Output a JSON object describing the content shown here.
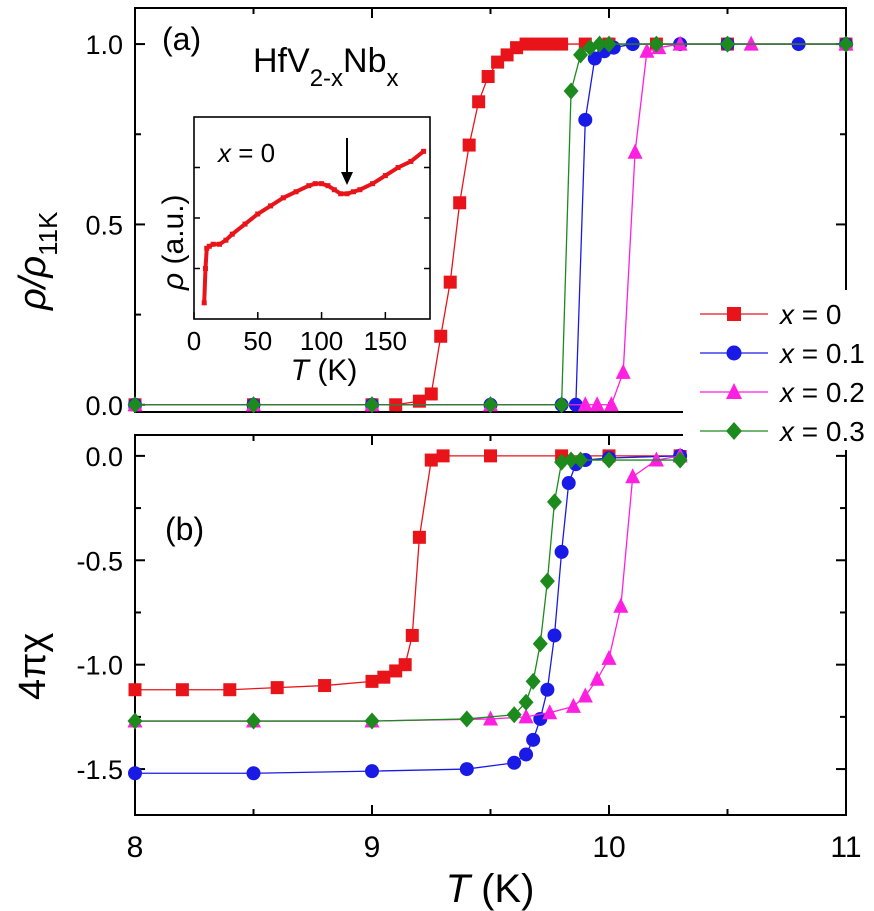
{
  "chart_data": [
    {
      "panel": "a",
      "type": "line",
      "panel_label": "(a)",
      "title_text": {
        "main": "HfV",
        "sub1": "2-x",
        "mid": "Nb",
        "sub2": "x"
      },
      "ylabel": {
        "main": "ρ/ρ",
        "sub": "11K"
      },
      "xlim": [
        8,
        11
      ],
      "ylim": [
        -0.02,
        1.1
      ],
      "yticks": [
        0.0,
        0.5,
        1.0
      ],
      "ytick_labels": [
        "0.0",
        "0.5",
        "1.0"
      ],
      "series": [
        {
          "name": "x = 0",
          "color": "#e8141a",
          "marker": "square",
          "x": [
            8.0,
            8.5,
            9.0,
            9.1,
            9.2,
            9.25,
            9.29,
            9.33,
            9.37,
            9.41,
            9.45,
            9.49,
            9.53,
            9.57,
            9.61,
            9.65,
            9.7,
            9.75,
            9.8,
            9.9,
            10.0,
            10.2,
            10.5,
            11.0
          ],
          "y": [
            0.0,
            0.0,
            0.0,
            0.0,
            0.01,
            0.03,
            0.19,
            0.34,
            0.56,
            0.72,
            0.84,
            0.91,
            0.95,
            0.97,
            0.99,
            1.0,
            1.0,
            1.0,
            1.0,
            1.0,
            1.0,
            1.0,
            1.0,
            1.0
          ]
        },
        {
          "name": "x = 0.1",
          "color": "#1a1ae6",
          "marker": "circle",
          "x": [
            8.0,
            8.5,
            9.0,
            9.5,
            9.8,
            9.86,
            9.9,
            9.94,
            9.98,
            10.02,
            10.1,
            10.3,
            10.5,
            10.8,
            11.0
          ],
          "y": [
            0.0,
            0.0,
            0.0,
            0.0,
            0.0,
            0.0,
            0.79,
            0.96,
            0.98,
            0.99,
            1.0,
            1.0,
            1.0,
            1.0,
            1.0
          ]
        },
        {
          "name": "x = 0.2",
          "color": "#ff1fe0",
          "marker": "triangle",
          "x": [
            8.0,
            8.5,
            9.0,
            9.5,
            9.9,
            9.95,
            10.01,
            10.06,
            10.11,
            10.16,
            10.21,
            10.3,
            10.6,
            11.0
          ],
          "y": [
            0.0,
            0.0,
            0.0,
            0.0,
            0.0,
            0.0,
            0.0,
            0.09,
            0.7,
            0.98,
            0.99,
            1.0,
            1.0,
            1.0
          ]
        },
        {
          "name": "x = 0.3",
          "color": "#1c8a1c",
          "marker": "diamond",
          "x": [
            8.0,
            8.5,
            9.0,
            9.5,
            9.8,
            9.84,
            9.88,
            9.92,
            9.96,
            10.0,
            10.2,
            10.5,
            11.0
          ],
          "y": [
            0.0,
            0.0,
            0.0,
            0.0,
            0.0,
            0.87,
            0.97,
            0.99,
            1.0,
            1.0,
            1.0,
            1.0,
            1.0
          ]
        }
      ]
    },
    {
      "panel": "a-inset",
      "type": "line",
      "label_text": "x = 0",
      "xlabel": {
        "var": "T",
        "unit": " (K)"
      },
      "ylabel": {
        "var": "ρ",
        "unit": " (a.u.)"
      },
      "xlim": [
        0,
        185
      ],
      "ylim": [
        0,
        1
      ],
      "xticks": [
        0,
        50,
        100,
        150
      ],
      "xtick_labels": [
        "0",
        "50",
        "100",
        "150"
      ],
      "arrow_at_x": 118,
      "color": "#e8141a",
      "x": [
        8,
        9,
        10,
        12,
        15,
        20,
        25,
        30,
        40,
        50,
        60,
        70,
        80,
        90,
        95,
        100,
        105,
        110,
        115,
        120,
        125,
        130,
        140,
        150,
        160,
        170,
        180
      ],
      "y": [
        0.08,
        0.25,
        0.35,
        0.36,
        0.37,
        0.37,
        0.39,
        0.42,
        0.47,
        0.52,
        0.56,
        0.6,
        0.63,
        0.66,
        0.67,
        0.67,
        0.66,
        0.64,
        0.62,
        0.62,
        0.63,
        0.64,
        0.67,
        0.71,
        0.75,
        0.78,
        0.83
      ]
    },
    {
      "panel": "b",
      "type": "line",
      "panel_label": "(b)",
      "ylabel": "4πχ",
      "xlabel": {
        "var": "T",
        "unit": " (K)"
      },
      "xlim": [
        8,
        11
      ],
      "ylim": [
        -1.72,
        0.1
      ],
      "xticks": [
        8,
        9,
        10,
        11
      ],
      "xtick_labels": [
        "8",
        "9",
        "10",
        "11"
      ],
      "yticks": [
        0.0,
        -0.5,
        -1.0,
        -1.5
      ],
      "ytick_labels": [
        "0.0",
        "-0.5",
        "-1.0",
        "-1.5"
      ],
      "series": [
        {
          "name": "x = 0",
          "color": "#e8141a",
          "marker": "square",
          "x": [
            8.0,
            8.2,
            8.4,
            8.6,
            8.8,
            9.0,
            9.05,
            9.1,
            9.14,
            9.17,
            9.2,
            9.25,
            9.3,
            9.5,
            9.8,
            10.0,
            10.3
          ],
          "y": [
            -1.12,
            -1.12,
            -1.12,
            -1.11,
            -1.1,
            -1.08,
            -1.06,
            -1.03,
            -1.0,
            -0.86,
            -0.39,
            -0.02,
            0.0,
            0.0,
            0.0,
            0.0,
            0.0
          ]
        },
        {
          "name": "x = 0.1",
          "color": "#1a1ae6",
          "marker": "circle",
          "x": [
            8.0,
            8.5,
            9.0,
            9.4,
            9.6,
            9.65,
            9.68,
            9.71,
            9.74,
            9.77,
            9.8,
            9.83,
            9.86,
            9.9,
            10.0,
            10.3
          ],
          "y": [
            -1.52,
            -1.52,
            -1.51,
            -1.5,
            -1.47,
            -1.43,
            -1.36,
            -1.26,
            -1.12,
            -0.86,
            -0.46,
            -0.13,
            -0.04,
            -0.02,
            -0.01,
            0.0
          ]
        },
        {
          "name": "x = 0.2",
          "color": "#ff1fe0",
          "marker": "triangle",
          "x": [
            8.0,
            8.5,
            9.0,
            9.5,
            9.65,
            9.75,
            9.85,
            9.9,
            9.95,
            10.0,
            10.05,
            10.1,
            10.2,
            10.3
          ],
          "y": [
            -1.27,
            -1.27,
            -1.27,
            -1.26,
            -1.25,
            -1.23,
            -1.2,
            -1.15,
            -1.07,
            -0.97,
            -0.72,
            -0.1,
            -0.02,
            0.0
          ]
        },
        {
          "name": "x = 0.3",
          "color": "#1c8a1c",
          "marker": "diamond",
          "x": [
            8.0,
            8.5,
            9.0,
            9.4,
            9.6,
            9.65,
            9.68,
            9.71,
            9.74,
            9.77,
            9.8,
            9.84,
            9.88,
            10.0,
            10.3
          ],
          "y": [
            -1.27,
            -1.27,
            -1.27,
            -1.26,
            -1.24,
            -1.18,
            -1.08,
            -0.9,
            -0.6,
            -0.22,
            -0.03,
            -0.02,
            -0.02,
            -0.02,
            -0.02
          ]
        }
      ]
    }
  ],
  "legend": {
    "placement": "right",
    "entries": [
      {
        "var": "x",
        "val": " = 0",
        "color": "#e8141a",
        "marker": "square"
      },
      {
        "var": "x",
        "val": " = 0.1",
        "color": "#1a1ae6",
        "marker": "circle"
      },
      {
        "var": "x",
        "val": " = 0.2",
        "color": "#ff1fe0",
        "marker": "triangle"
      },
      {
        "var": "x",
        "val": " = 0.3",
        "color": "#1c8a1c",
        "marker": "diamond"
      }
    ]
  }
}
